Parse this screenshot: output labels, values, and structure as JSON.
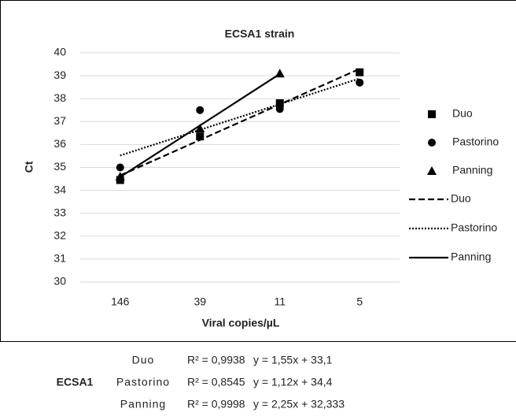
{
  "chart_data": {
    "type": "scatter",
    "title": "ECSA1 strain",
    "xlabel": "Viral copies/µL",
    "ylabel": "Ct",
    "categories": [
      "146",
      "39",
      "11",
      "5"
    ],
    "ylim": [
      30,
      40
    ],
    "yticks": [
      30,
      31,
      32,
      33,
      34,
      35,
      36,
      37,
      38,
      39,
      40
    ],
    "grid": true,
    "legend": "right",
    "series": [
      {
        "name": "Duo",
        "color": "#000000",
        "marker": "square",
        "values": [
          34.45,
          36.35,
          37.8,
          39.15
        ]
      },
      {
        "name": "Pastorino",
        "color": "#000000",
        "marker": "circle",
        "values": [
          35.0,
          37.5,
          37.55,
          38.7
        ]
      },
      {
        "name": "Panning",
        "color": "#000000",
        "marker": "triangle",
        "values": [
          34.6,
          36.7,
          39.1,
          null
        ]
      }
    ],
    "trendlines": [
      {
        "name": "Duo",
        "color": "#000000",
        "dash": "dashed",
        "values": [
          34.65,
          36.2,
          37.75,
          39.3
        ]
      },
      {
        "name": "Pastorino",
        "color": "#000000",
        "dash": "dotted",
        "values": [
          35.52,
          36.64,
          37.76,
          38.88
        ]
      },
      {
        "name": "Panning",
        "color": "#000000",
        "dash": "solid",
        "values": [
          34.58,
          36.83,
          39.08,
          null
        ]
      }
    ]
  },
  "table": {
    "group": "ECSA1",
    "rows": [
      [
        "Duo",
        "R² = 0,9938",
        "y = 1,55x + 33,1"
      ],
      [
        "Pastorino",
        "R² = 0,8545",
        "y = 1,12x + 34,4"
      ],
      [
        "Panning",
        "R² = 0,9998",
        "y = 2,25x + 32,333"
      ]
    ]
  }
}
